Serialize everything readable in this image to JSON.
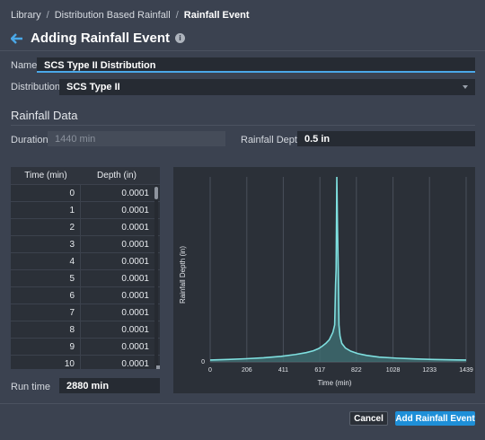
{
  "breadcrumb": {
    "items": [
      "Library",
      "Distribution Based Rainfall"
    ],
    "current": "Rainfall Event",
    "separator": "/"
  },
  "header": {
    "title": "Adding Rainfall Event",
    "info_glyph": "i"
  },
  "form": {
    "name_label": "Name",
    "name_value": "SCS Type II Distribution",
    "distribution_label": "Distribution",
    "distribution_value": "SCS Type II"
  },
  "rainfall_data": {
    "section_title": "Rainfall Data",
    "duration_label": "Duration",
    "duration_value": "1440 min",
    "depth_label": "Rainfall Depth",
    "depth_value": "0.5 in"
  },
  "table": {
    "col_time": "Time (min)",
    "col_depth": "Depth (in)",
    "rows": [
      {
        "time": "0",
        "depth": "0.0001"
      },
      {
        "time": "1",
        "depth": "0.0001"
      },
      {
        "time": "2",
        "depth": "0.0001"
      },
      {
        "time": "3",
        "depth": "0.0001"
      },
      {
        "time": "4",
        "depth": "0.0001"
      },
      {
        "time": "5",
        "depth": "0.0001"
      },
      {
        "time": "6",
        "depth": "0.0001"
      },
      {
        "time": "7",
        "depth": "0.0001"
      },
      {
        "time": "8",
        "depth": "0.0001"
      },
      {
        "time": "9",
        "depth": "0.0001"
      },
      {
        "time": "10",
        "depth": "0.0001"
      }
    ]
  },
  "run_time": {
    "label": "Run time",
    "value": "2880 min"
  },
  "buttons": {
    "cancel": "Cancel",
    "add": "Add Rainfall Event"
  },
  "colors": {
    "accent": "#1e8fd8",
    "series": "#7fe0e0",
    "background": "#3b4250"
  },
  "chart_data": {
    "type": "area",
    "xlabel": "Time (min)",
    "ylabel": "Rainfall Depth (in)",
    "xticks": [
      0,
      206,
      411,
      617,
      822,
      1028,
      1233,
      1439
    ],
    "yticks": [
      0
    ],
    "xlim": [
      0,
      1439
    ],
    "ylim": [
      0,
      1
    ],
    "grid": true,
    "x": [
      0,
      100,
      200,
      300,
      400,
      480,
      540,
      580,
      610,
      630,
      650,
      670,
      690,
      700,
      705,
      708,
      712,
      716,
      720,
      724,
      730,
      740,
      760,
      790,
      830,
      880,
      950,
      1050,
      1150,
      1250,
      1350,
      1439
    ],
    "y": [
      0.01,
      0.013,
      0.017,
      0.022,
      0.03,
      0.04,
      0.05,
      0.06,
      0.072,
      0.085,
      0.1,
      0.12,
      0.16,
      0.2,
      0.42,
      0.5,
      1.0,
      0.72,
      0.5,
      0.2,
      0.14,
      0.1,
      0.075,
      0.058,
      0.045,
      0.035,
      0.026,
      0.02,
      0.016,
      0.013,
      0.011,
      0.01
    ]
  }
}
